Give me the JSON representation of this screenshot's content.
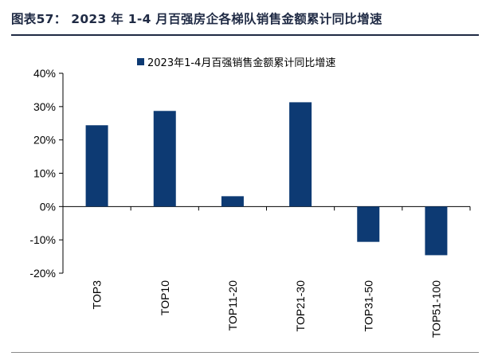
{
  "header": {
    "title": "图表57： 2023 年 1-4 月百强房企各梯队销售金额累计同比增速"
  },
  "chart_data": {
    "type": "bar",
    "title": "",
    "xlabel": "",
    "ylabel": "",
    "categories": [
      "TOP3",
      "TOP10",
      "TOP11-20",
      "TOP21-30",
      "TOP31-50",
      "TOP51-100"
    ],
    "series": [
      {
        "name": "2023年1-4月百强销售金额累计同比增速",
        "values": [
          24.4,
          28.7,
          3.1,
          31.3,
          -10.6,
          -14.6
        ],
        "color": "#0d3a73"
      }
    ],
    "ylim": [
      -20,
      40
    ],
    "yticks": [
      -20,
      -10,
      0,
      10,
      20,
      30,
      40
    ],
    "ytick_labels": [
      "-20%",
      "-10%",
      "0%",
      "10%",
      "20%",
      "30%",
      "40%"
    ],
    "unit": "%",
    "legend_position": "top",
    "grid": false
  }
}
